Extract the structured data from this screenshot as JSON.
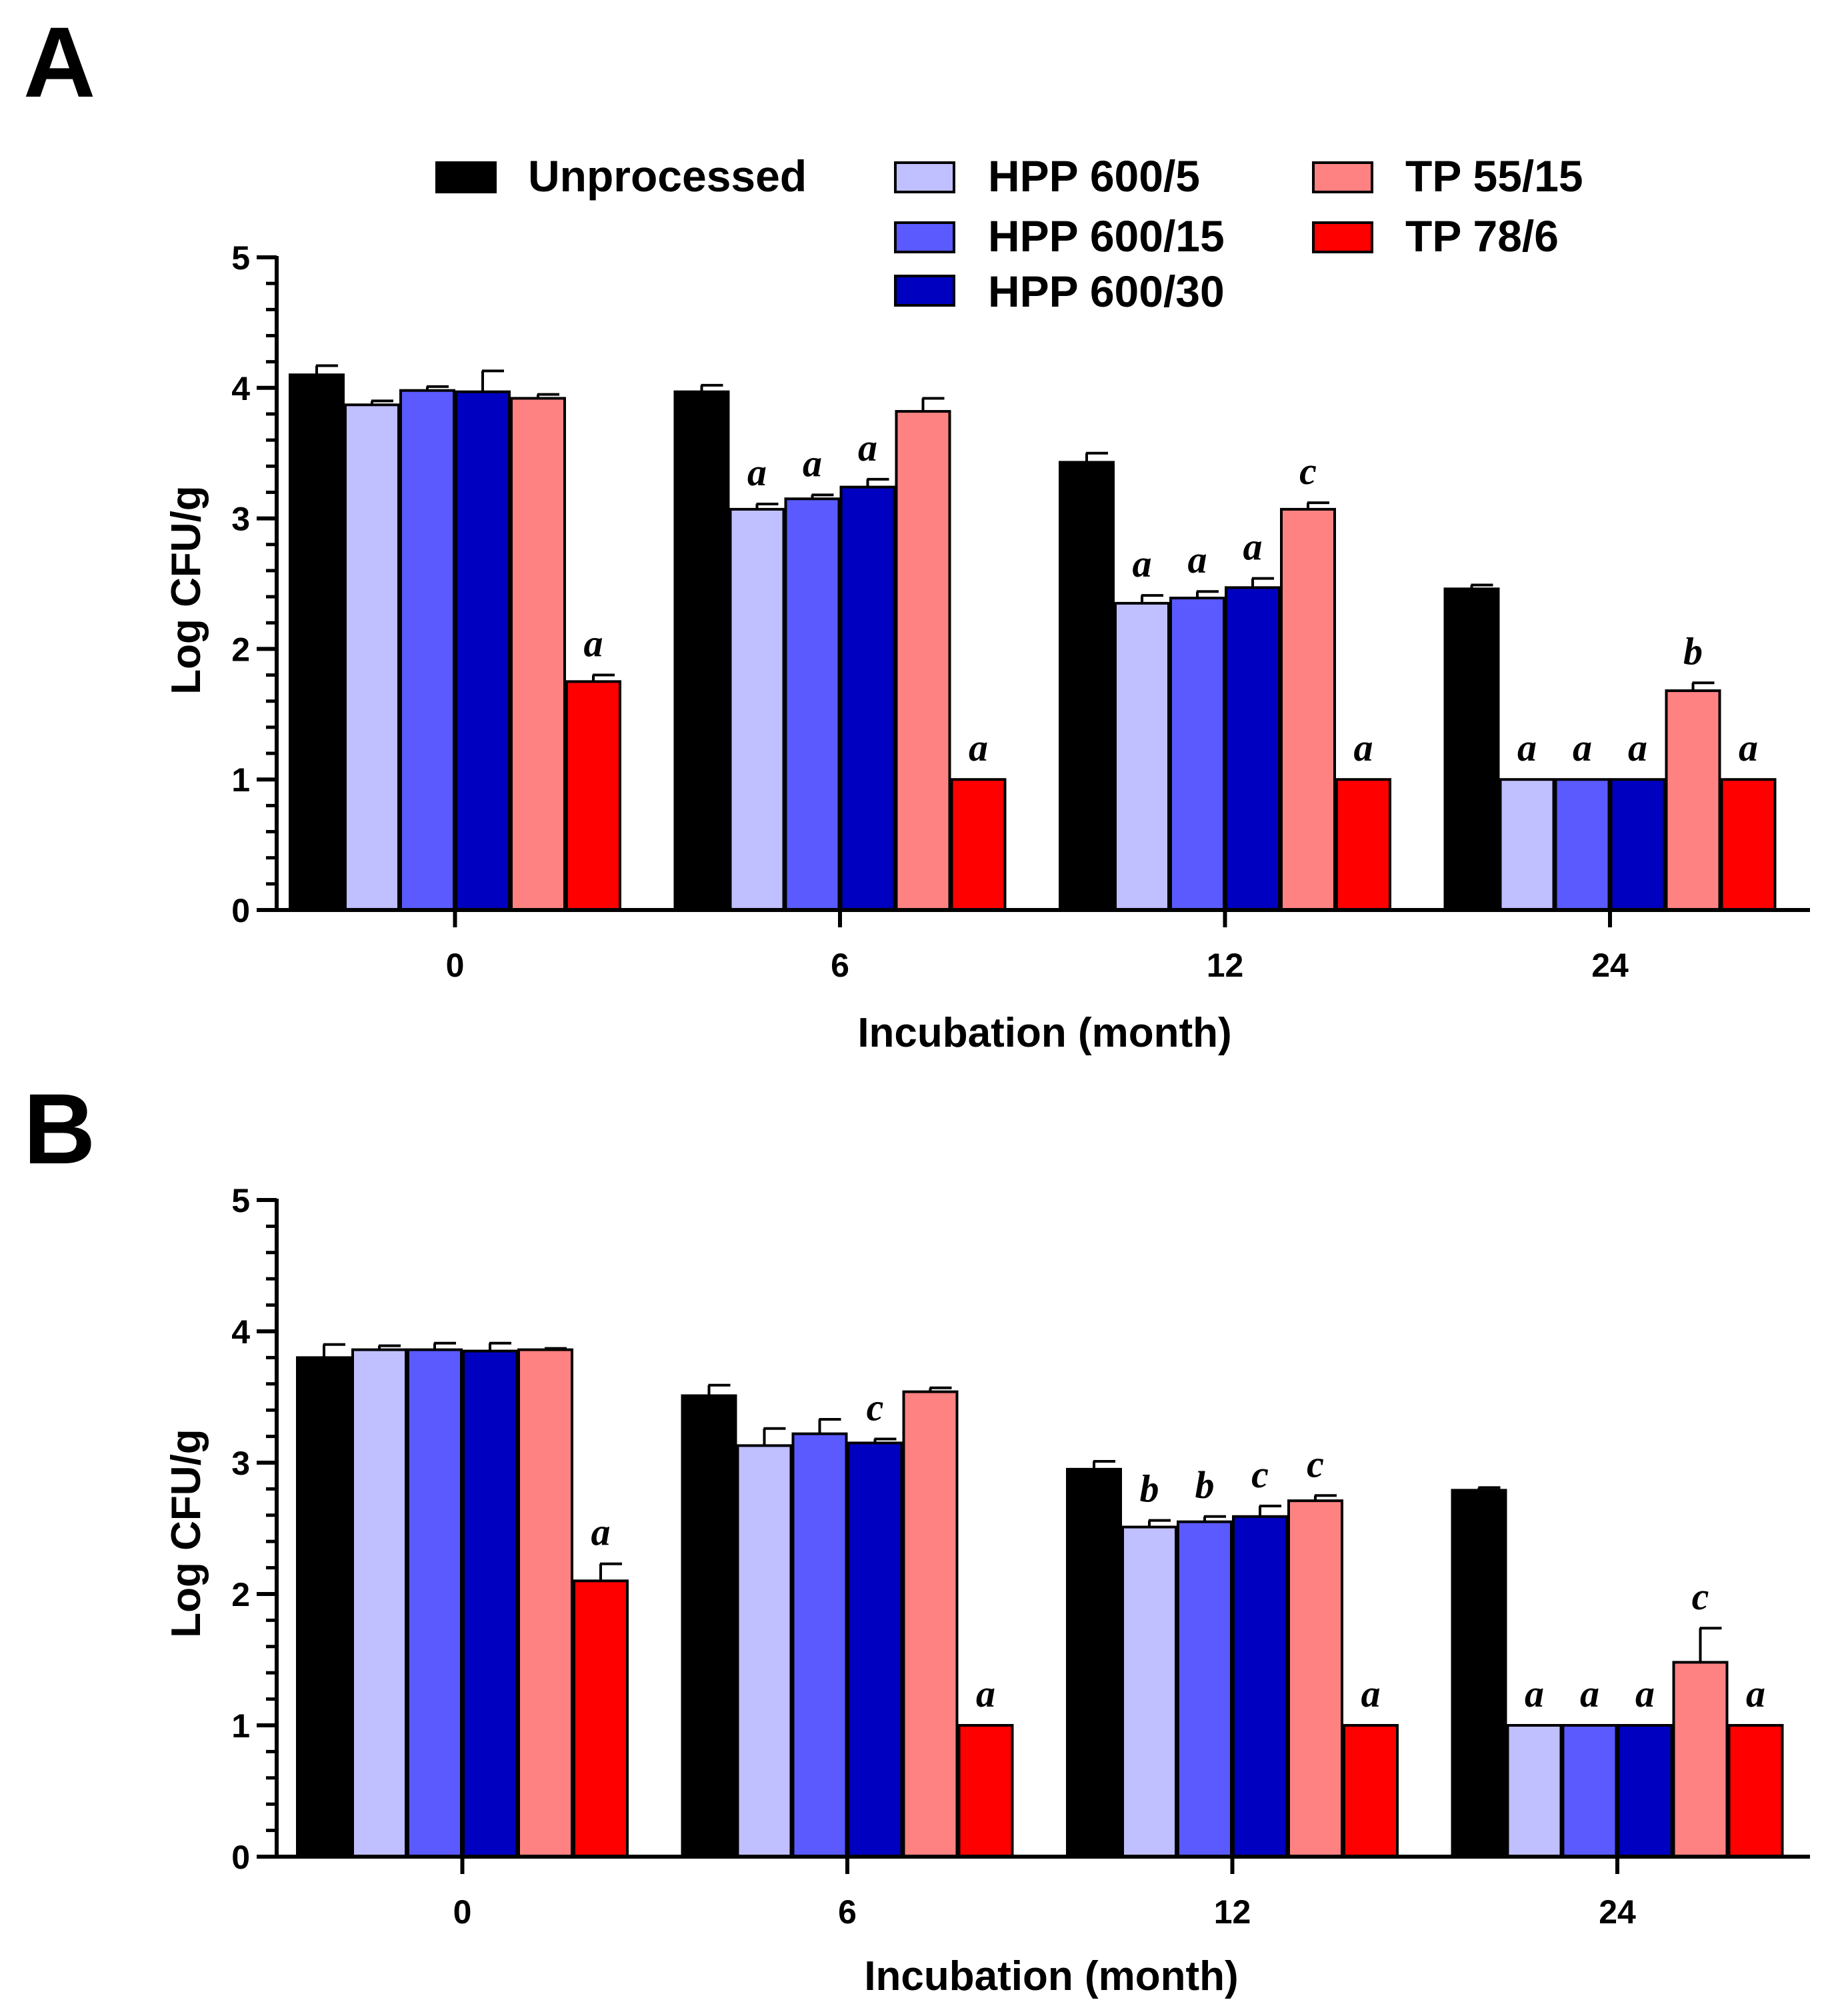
{
  "chart_data": [
    {
      "type": "bar",
      "panel": "A",
      "categories": [
        "0",
        "6",
        "12",
        "24"
      ],
      "series": [
        {
          "name": "Unprocessed",
          "color": "#000000",
          "values": [
            4.1,
            3.97,
            3.43,
            2.46
          ],
          "errors": [
            0.07,
            0.05,
            0.07,
            0.03
          ],
          "labels": [
            "",
            "",
            "",
            ""
          ]
        },
        {
          "name": "HPP 600/5",
          "color": "#c0bfff",
          "values": [
            3.87,
            3.07,
            2.35,
            1.0
          ],
          "errors": [
            0.03,
            0.04,
            0.06,
            0.0
          ],
          "labels": [
            "",
            "a",
            "a",
            "a"
          ]
        },
        {
          "name": "HPP 600/15",
          "color": "#5a5aff",
          "values": [
            3.98,
            3.15,
            2.39,
            1.0
          ],
          "errors": [
            0.03,
            0.03,
            0.05,
            0.0
          ],
          "labels": [
            "",
            "a",
            "a",
            "a"
          ]
        },
        {
          "name": "HPP 600/30",
          "color": "#0000c0",
          "values": [
            3.97,
            3.24,
            2.47,
            1.0
          ],
          "errors": [
            0.16,
            0.06,
            0.07,
            0.0
          ],
          "labels": [
            "",
            "a",
            "a",
            "a"
          ]
        },
        {
          "name": "TP 55/15",
          "color": "#ff8282",
          "values": [
            3.92,
            3.82,
            3.07,
            1.68
          ],
          "errors": [
            0.03,
            0.1,
            0.05,
            0.06
          ],
          "labels": [
            "",
            "",
            "c",
            "b"
          ]
        },
        {
          "name": "TP 78/6",
          "color": "#ff0000",
          "values": [
            1.75,
            1.0,
            1.0,
            1.0
          ],
          "errors": [
            0.05,
            0.0,
            0.0,
            0.0
          ],
          "labels": [
            "a",
            "a",
            "a",
            "a"
          ]
        }
      ],
      "title": "",
      "xlabel": "Incubation (month)",
      "ylabel": "Log CFU/g",
      "ylim": [
        0,
        5
      ],
      "yticks": [
        "0",
        "1",
        "2",
        "3",
        "4",
        "5"
      ],
      "grid": false,
      "legend": "top"
    },
    {
      "type": "bar",
      "panel": "B",
      "categories": [
        "0",
        "6",
        "12",
        "24"
      ],
      "series": [
        {
          "name": "Unprocessed",
          "color": "#000000",
          "values": [
            3.8,
            3.51,
            2.95,
            2.79
          ],
          "errors": [
            0.1,
            0.08,
            0.06,
            0.02
          ],
          "labels": [
            "",
            "",
            "",
            ""
          ]
        },
        {
          "name": "HPP 600/5",
          "color": "#c0bfff",
          "values": [
            3.86,
            3.13,
            2.51,
            1.0
          ],
          "errors": [
            0.03,
            0.13,
            0.05,
            0.0
          ],
          "labels": [
            "",
            "",
            "b",
            "a"
          ]
        },
        {
          "name": "HPP 600/15",
          "color": "#5a5aff",
          "values": [
            3.86,
            3.22,
            2.55,
            1.0
          ],
          "errors": [
            0.05,
            0.11,
            0.04,
            0.0
          ],
          "labels": [
            "",
            "",
            "b",
            "a"
          ]
        },
        {
          "name": "HPP 600/30",
          "color": "#0000c0",
          "values": [
            3.85,
            3.15,
            2.59,
            1.0
          ],
          "errors": [
            0.06,
            0.03,
            0.08,
            0.0
          ],
          "labels": [
            "",
            "c",
            "c",
            "a"
          ]
        },
        {
          "name": "TP 55/15",
          "color": "#ff8282",
          "values": [
            3.86,
            3.54,
            2.71,
            1.48
          ],
          "errors": [
            0.01,
            0.03,
            0.04,
            0.26
          ],
          "labels": [
            "",
            "",
            "c",
            "c"
          ]
        },
        {
          "name": "TP 78/6",
          "color": "#ff0000",
          "values": [
            2.1,
            1.0,
            1.0,
            1.0
          ],
          "errors": [
            0.13,
            0.0,
            0.0,
            0.0
          ],
          "labels": [
            "a",
            "a",
            "a",
            "a"
          ]
        }
      ],
      "title": "",
      "xlabel": "Incubation (month)",
      "ylabel": "Log CFU/g",
      "ylim": [
        0,
        5
      ],
      "yticks": [
        "0",
        "1",
        "2",
        "3",
        "4",
        "5"
      ],
      "grid": false,
      "legend": "none"
    }
  ]
}
